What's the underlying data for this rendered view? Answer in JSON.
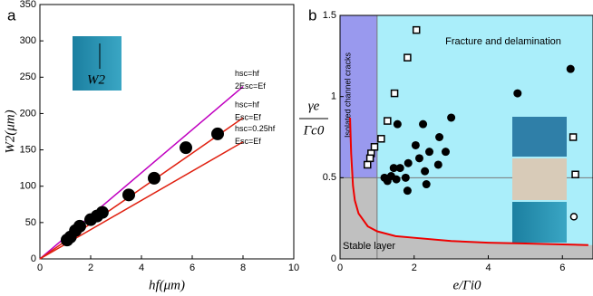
{
  "chart_data": [
    {
      "type": "scatter",
      "panel": "a",
      "xlabel": "hf(μm)",
      "ylabel": "W2(μm)",
      "inset_label": "W2",
      "xlim": [
        0,
        10
      ],
      "ylim": [
        0,
        350
      ],
      "xticks": [
        0,
        2,
        4,
        6,
        8,
        10
      ],
      "yticks": [
        0,
        50,
        100,
        150,
        200,
        250,
        300,
        350
      ],
      "series": [
        {
          "type": "line",
          "color": "#c000c0",
          "x": [
            0,
            8
          ],
          "values": [
            0,
            237
          ],
          "labels": [
            "hsc=hf",
            "2Esc=Ef"
          ]
        },
        {
          "type": "line",
          "color": "#e02010",
          "x": [
            0,
            8
          ],
          "values": [
            0,
            194
          ],
          "labels": [
            "hsc=hf",
            "Esc=Ef"
          ]
        },
        {
          "type": "line",
          "color": "#e02010",
          "x": [
            0,
            8
          ],
          "values": [
            0,
            161
          ],
          "labels": [
            "hsc=0.25hf",
            "Esc=Ef"
          ]
        },
        {
          "type": "scatter",
          "color": "#000000",
          "x": [
            1.07,
            1.2,
            1.4,
            1.57,
            2.0,
            2.25,
            2.46,
            3.5,
            4.5,
            5.75,
            7.0
          ],
          "values": [
            26,
            30,
            39,
            45,
            54,
            59,
            64,
            88,
            111,
            153,
            172
          ]
        }
      ]
    },
    {
      "type": "scatter",
      "panel": "b",
      "xlabel": "e/Γi0",
      "ylabel": {
        "numerator": "γe",
        "denominator": "Γc0"
      },
      "xlim": [
        0,
        6.85
      ],
      "ylim": [
        0,
        1.5
      ],
      "xticks": [
        0,
        2,
        4,
        6
      ],
      "yticks": [
        0,
        0.5,
        1,
        1.5
      ],
      "threshold_x": 1,
      "threshold_y": 0.5,
      "regions": [
        "Isolated channel cracks",
        "Fracture and delamination",
        "Stable layer"
      ],
      "series": [
        {
          "type": "line",
          "color": "#ee0000",
          "x": [
            0.27,
            0.3,
            0.35,
            0.4,
            0.5,
            0.75,
            1,
            1.5,
            2,
            3,
            4,
            5,
            6.7
          ],
          "values": [
            0.87,
            0.65,
            0.45,
            0.36,
            0.28,
            0.2,
            0.17,
            0.14,
            0.13,
            0.11,
            0.1,
            0.095,
            0.085
          ]
        },
        {
          "type": "scatter",
          "marker": "circle",
          "color": "#000000",
          "x": [
            6.22,
            4.79,
            3.0,
            2.24,
            1.55,
            2.68,
            2.04,
            2.41,
            2.85,
            2.14,
            1.84,
            2.65,
            2.29,
            1.45,
            1.62,
            1.77,
            1.38,
            1.28,
            1.52,
            1.82,
            2.33,
            1.2
          ],
          "values": [
            1.17,
            1.02,
            0.87,
            0.83,
            0.83,
            0.75,
            0.7,
            0.66,
            0.66,
            0.62,
            0.59,
            0.58,
            0.54,
            0.56,
            0.56,
            0.5,
            0.51,
            0.48,
            0.49,
            0.42,
            0.46,
            0.5
          ]
        },
        {
          "type": "scatter",
          "marker": "square",
          "color": "#000000",
          "x": [
            2.06,
            1.82,
            1.47,
            1.28,
            1.11,
            0.93,
            0.84,
            0.81,
            0.74,
            6.29,
            6.35
          ],
          "values": [
            1.41,
            1.24,
            1.02,
            0.85,
            0.74,
            0.69,
            0.65,
            0.62,
            0.58,
            0.75,
            0.52
          ]
        },
        {
          "type": "scatter",
          "marker": "ring",
          "color": "#000000",
          "x": [
            6.31
          ],
          "values": [
            0.26
          ]
        }
      ]
    }
  ]
}
